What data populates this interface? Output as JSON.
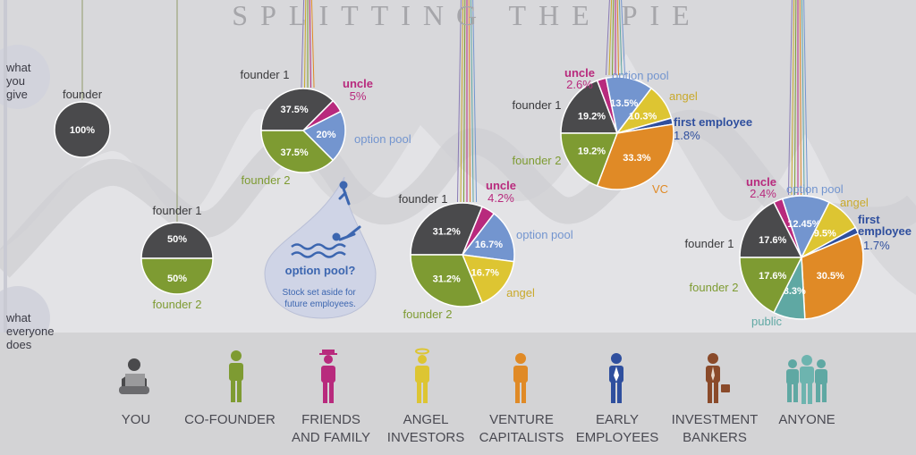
{
  "title": "SPLITTING THE PIE",
  "side_labels": {
    "give": "what\nyou\ngive",
    "does": "what\neveryone\ndoes"
  },
  "colors": {
    "founder": "#4a4a4c",
    "founder2": "#7e9b32",
    "uncle": "#b82a7d",
    "option_pool": "#7395cf",
    "angel": "#ddc532",
    "first_employee": "#2f4f9e",
    "vc": "#e08a26",
    "public": "#5fa8a3"
  },
  "chart_data": [
    {
      "type": "pie",
      "stage": "you",
      "slices": [
        {
          "label": "founder",
          "value": 100,
          "value_label": "100%",
          "color": "#4a4a4c"
        }
      ]
    },
    {
      "type": "pie",
      "stage": "co-founder",
      "slices": [
        {
          "label": "founder 1",
          "value": 50,
          "value_label": "50%",
          "color": "#4a4a4c"
        },
        {
          "label": "founder 2",
          "value": 50,
          "value_label": "50%",
          "color": "#7e9b32"
        }
      ]
    },
    {
      "type": "pie",
      "stage": "friends and family",
      "slices": [
        {
          "label": "founder 1",
          "value": 37.5,
          "value_label": "37.5%",
          "color": "#4a4a4c"
        },
        {
          "label": "uncle",
          "value": 5,
          "value_label": "5%",
          "color": "#b82a7d"
        },
        {
          "label": "option pool",
          "value": 20,
          "value_label": "20%",
          "color": "#7395cf"
        },
        {
          "label": "founder 2",
          "value": 37.5,
          "value_label": "37.5%",
          "color": "#7e9b32"
        }
      ]
    },
    {
      "type": "pie",
      "stage": "angel investors",
      "slices": [
        {
          "label": "founder 1",
          "value": 31.2,
          "value_label": "31.2%",
          "color": "#4a4a4c"
        },
        {
          "label": "uncle",
          "value": 4.2,
          "value_label": "4.2%",
          "color": "#b82a7d"
        },
        {
          "label": "option pool",
          "value": 16.7,
          "value_label": "16.7%",
          "color": "#7395cf"
        },
        {
          "label": "angel",
          "value": 16.7,
          "value_label": "16.7%",
          "color": "#ddc532"
        },
        {
          "label": "founder 2",
          "value": 31.2,
          "value_label": "31.2%",
          "color": "#7e9b32"
        }
      ]
    },
    {
      "type": "pie",
      "stage": "venture capitalists",
      "slices": [
        {
          "label": "founder 1",
          "value": 19.2,
          "value_label": "19.2%",
          "color": "#4a4a4c"
        },
        {
          "label": "uncle",
          "value": 2.6,
          "value_label": "2.6%",
          "color": "#b82a7d"
        },
        {
          "label": "option pool",
          "value": 13.5,
          "value_label": "13.5%",
          "color": "#7395cf"
        },
        {
          "label": "angel",
          "value": 10.3,
          "value_label": "10.3%",
          "color": "#ddc532"
        },
        {
          "label": "first employee",
          "value": 1.8,
          "value_label": "1.8%",
          "color": "#2f4f9e"
        },
        {
          "label": "VC",
          "value": 33.3,
          "value_label": "33.3%",
          "color": "#e08a26"
        },
        {
          "label": "founder 2",
          "value": 19.2,
          "value_label": "19.2%",
          "color": "#7e9b32"
        }
      ]
    },
    {
      "type": "pie",
      "stage": "anyone",
      "slices": [
        {
          "label": "founder 1",
          "value": 17.6,
          "value_label": "17.6%",
          "color": "#4a4a4c"
        },
        {
          "label": "uncle",
          "value": 2.4,
          "value_label": "2.4%",
          "color": "#b82a7d"
        },
        {
          "label": "option pool",
          "value": 12.45,
          "value_label": "12.45%",
          "color": "#7395cf"
        },
        {
          "label": "angel",
          "value": 9.5,
          "value_label": "9.5%",
          "color": "#ddc532"
        },
        {
          "label": "first employee",
          "value": 1.7,
          "value_label": "1.7%",
          "color": "#2f4f9e"
        },
        {
          "label": "VC",
          "value": 30.5,
          "value_label": "30.5%",
          "color": "#e08a26"
        },
        {
          "label": "public",
          "value": 8.3,
          "value_label": "8.3%",
          "color": "#5fa8a3"
        },
        {
          "label": "founder 2",
          "value": 17.6,
          "value_label": "17.6%",
          "color": "#7e9b32"
        }
      ]
    }
  ],
  "outside_labels": {
    "p0": {
      "founder": "founder"
    },
    "p1": {
      "founder1": "founder 1",
      "founder2": "founder 2"
    },
    "p2": {
      "founder1": "founder 1",
      "uncle": "uncle",
      "uncle_pct": "5%",
      "option_pool": "option pool",
      "founder2": "founder 2"
    },
    "p3": {
      "founder1": "founder 1",
      "uncle": "uncle",
      "uncle_pct": "4.2%",
      "option_pool": "option pool",
      "angel": "angel",
      "founder2": "founder 2"
    },
    "p4": {
      "founder1": "founder 1",
      "uncle": "uncle",
      "uncle_pct": "2.6%",
      "option_pool": "option pool",
      "angel": "angel",
      "first_employee": "first employee",
      "first_employee_pct": "1.8%",
      "vc": "VC",
      "founder2": "founder 2"
    },
    "p5": {
      "founder1": "founder 1",
      "uncle": "uncle",
      "uncle_pct": "2.4%",
      "option_pool": "option pool",
      "angel": "angel",
      "first_employee": "first",
      "first_employee_2": "employee",
      "first_employee_pct": "1.7%",
      "public": "public",
      "founder2": "founder 2"
    }
  },
  "drop": {
    "heading": "option pool?",
    "caption": "Stock set aside for\nfuture employees."
  },
  "roles": [
    {
      "label": "YOU",
      "icon": "person-laptop-icon"
    },
    {
      "label": "CO-FOUNDER",
      "icon": "person-icon"
    },
    {
      "label": "FRIENDS\nAND FAMILY",
      "icon": "person-hat-icon"
    },
    {
      "label": "ANGEL\nINVESTORS",
      "icon": "person-halo-icon"
    },
    {
      "label": "VENTURE\nCAPITALISTS",
      "icon": "person-icon"
    },
    {
      "label": "EARLY\nEMPLOYEES",
      "icon": "person-tie-icon"
    },
    {
      "label": "INVESTMENT\nBANKERS",
      "icon": "person-briefcase-icon"
    },
    {
      "label": "ANYONE",
      "icon": "group-icon"
    }
  ]
}
